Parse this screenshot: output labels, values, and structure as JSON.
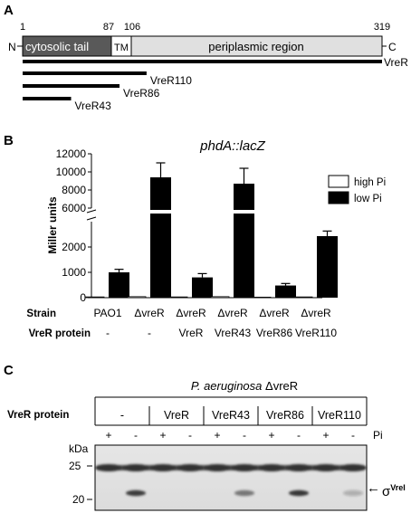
{
  "panel_a": {
    "letter": "A",
    "n_term": "N",
    "c_term": "C",
    "pos_start": "1",
    "pos_tail_end": "87",
    "pos_tm_end": "106",
    "pos_end": "319",
    "domains": {
      "tail": "cytosolic tail",
      "tm": "TM",
      "peri": "periplasmic region"
    },
    "constructs": [
      {
        "label": "VreR",
        "end": 319
      },
      {
        "label": "VreR110",
        "end": 110
      },
      {
        "label": "VreR86",
        "end": 86
      },
      {
        "label": "VreR43",
        "end": 43
      }
    ]
  },
  "panel_b": {
    "letter": "B",
    "title": "phdA::lacZ",
    "ylabel": "Miller units",
    "row_strain_label": "Strain",
    "row_protein_label": "VreR protein",
    "strains": [
      "PAO1",
      "ΔvreR",
      "ΔvreR",
      "ΔvreR",
      "ΔvreR",
      "ΔvreR"
    ],
    "proteins": [
      "-",
      "-",
      "VreR",
      "VreR43",
      "VreR86",
      "VreR110"
    ],
    "legend": {
      "high": "high Pi",
      "low": "low Pi"
    }
  },
  "chart_data": {
    "type": "bar",
    "title": "phdA::lacZ",
    "ylabel": "Miller units",
    "axis_break": [
      3000,
      6000
    ],
    "y_ticks": [
      0,
      1000,
      2000,
      6000,
      8000,
      10000,
      12000
    ],
    "categories": [
      "PAO1",
      "ΔvreR",
      "ΔvreR VreR",
      "ΔvreR VreR43",
      "ΔvreR VreR86",
      "ΔvreR VreR110"
    ],
    "series": [
      {
        "name": "high Pi",
        "values": [
          30,
          40,
          30,
          40,
          20,
          30
        ],
        "errors": [
          0,
          0,
          0,
          0,
          0,
          0
        ]
      },
      {
        "name": "low Pi",
        "values": [
          1000,
          9400,
          800,
          8700,
          480,
          2430
        ],
        "errors": [
          120,
          1600,
          150,
          1700,
          80,
          200
        ]
      }
    ],
    "legend_position": "top-right",
    "colors": {
      "high": "#ffffff",
      "low": "#000000"
    }
  },
  "panel_c": {
    "letter": "C",
    "header": "P. aeruginosa ΔvreR",
    "protein_label": "VreR protein",
    "lanes": [
      "-",
      "VreR",
      "VreR43",
      "VreR86",
      "VreR110"
    ],
    "pi_signs": [
      "+",
      "-",
      "+",
      "-",
      "+",
      "-",
      "+",
      "-",
      "+",
      "-"
    ],
    "pi_label": "Pi",
    "kda_label": "kDa",
    "markers": [
      "25",
      "20"
    ],
    "sigma_label": "σ",
    "sigma_sup": "VreI",
    "arrow": "←"
  }
}
